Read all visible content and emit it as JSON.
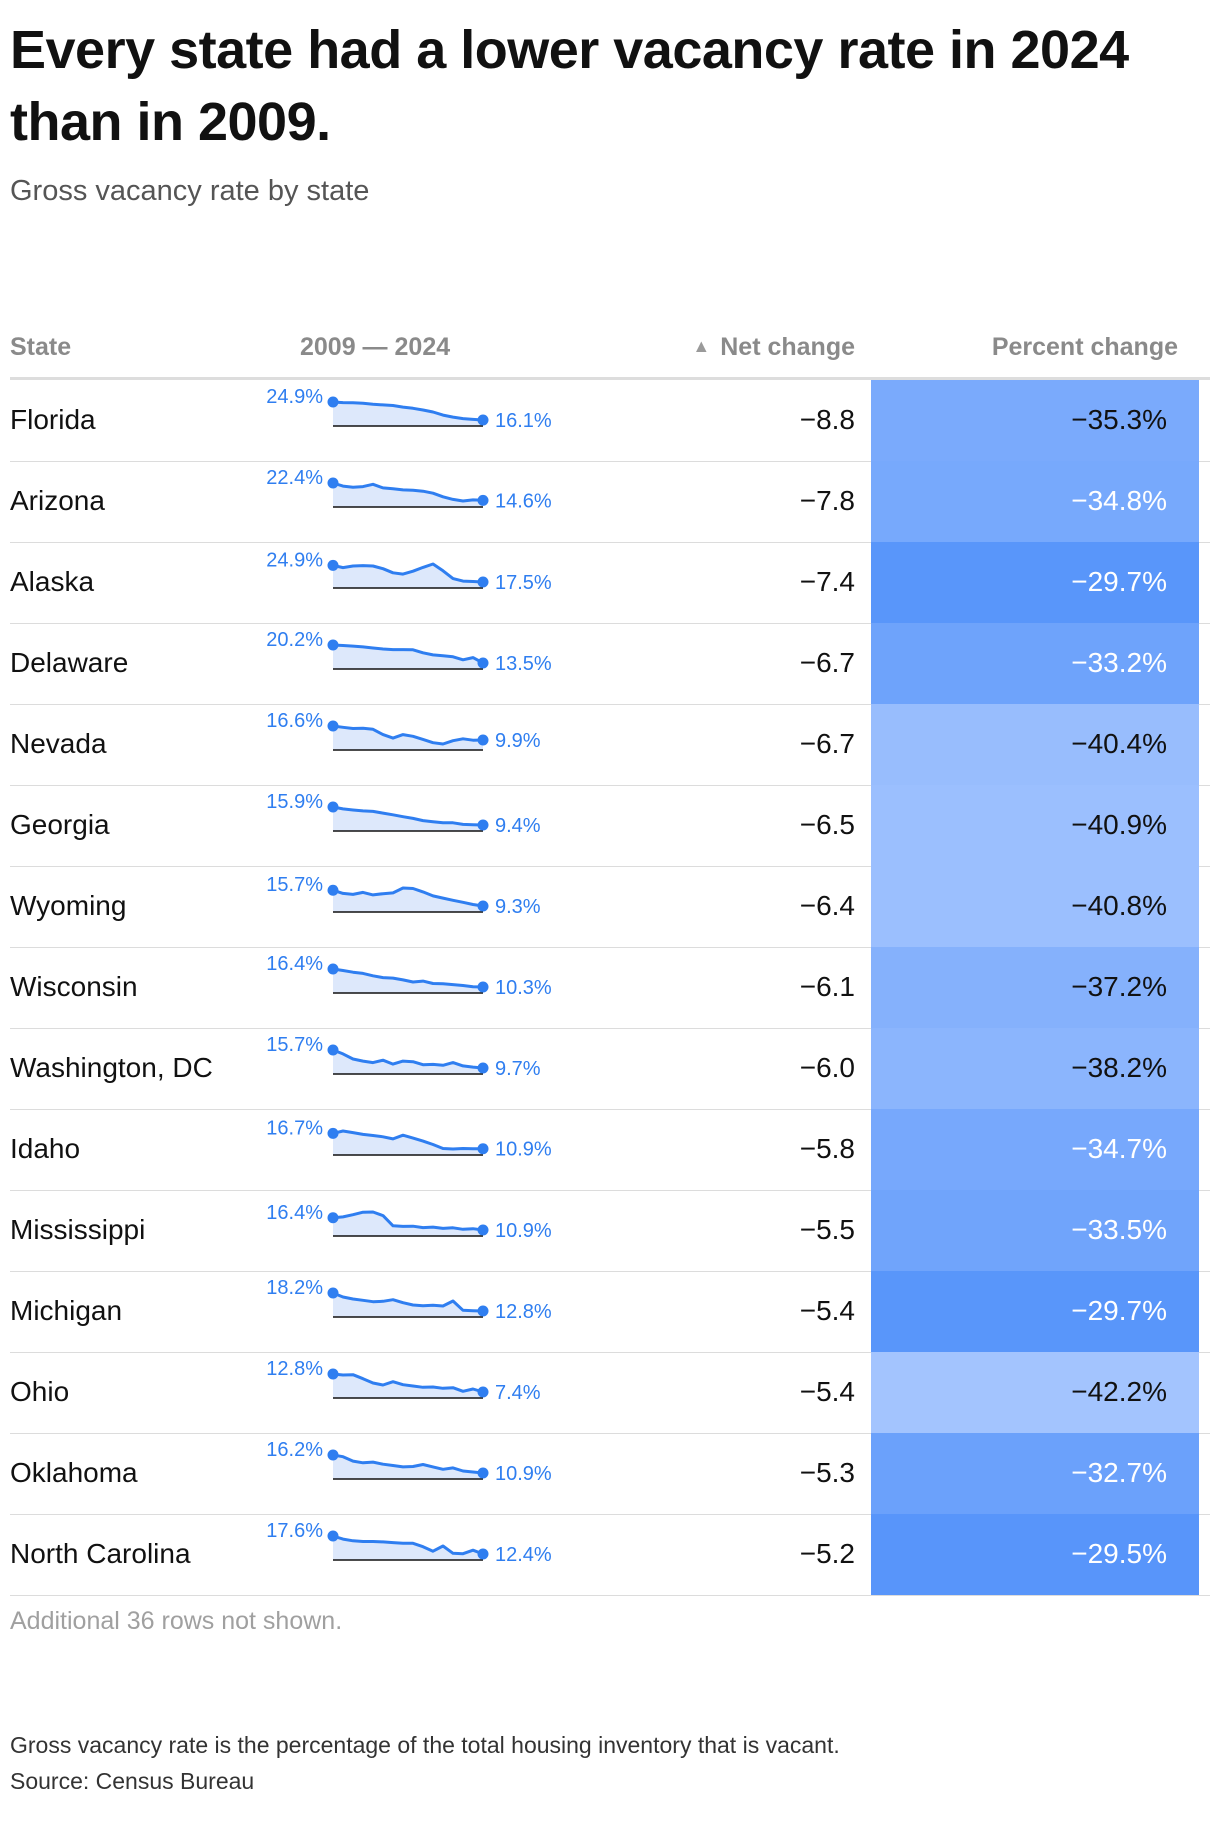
{
  "title": "Every state had a lower vacancy rate in 2024 than in 2009.",
  "subtitle": "Gross vacancy rate by state",
  "columns": {
    "state": "State",
    "range": "2009 — 2024",
    "net": "Net change",
    "percent": "Percent change"
  },
  "note": "Additional 36 rows not shown.",
  "footnote": "Gross vacancy rate is the percentage of the total housing inventory that is vacant.",
  "source": "Source: Census Bureau",
  "colors": {
    "accent": "#2f7ef0",
    "area": "#dde8fb"
  },
  "chart_data": {
    "type": "table",
    "sparkline_years": [
      2009,
      2024
    ],
    "rows": [
      {
        "state": "Florida",
        "start": "24.9%",
        "end": "16.1%",
        "net": "−8.8",
        "percent": "−35.3%",
        "spark": [
          24.9,
          24.6,
          24.5,
          24.3,
          23.8,
          23.5,
          23.2,
          22.4,
          21.8,
          21.0,
          20.0,
          18.5,
          17.5,
          16.8,
          16.4,
          16.1
        ]
      },
      {
        "state": "Arizona",
        "start": "22.4%",
        "end": "14.6%",
        "net": "−7.8",
        "percent": "−34.8%",
        "spark": [
          22.4,
          21.0,
          20.5,
          20.8,
          21.8,
          20.2,
          19.8,
          19.3,
          19.1,
          18.7,
          17.8,
          16.2,
          15.0,
          14.3,
          14.8,
          14.6
        ]
      },
      {
        "state": "Alaska",
        "start": "24.9%",
        "end": "17.5%",
        "net": "−7.4",
        "percent": "−29.7%",
        "spark": [
          24.9,
          23.9,
          24.6,
          24.8,
          24.6,
          23.4,
          21.6,
          21.0,
          22.3,
          24.0,
          25.5,
          22.5,
          19.0,
          17.9,
          17.7,
          17.5
        ]
      },
      {
        "state": "Delaware",
        "start": "20.2%",
        "end": "13.5%",
        "net": "−6.7",
        "percent": "−33.2%",
        "spark": [
          20.2,
          20.0,
          19.8,
          19.5,
          19.1,
          18.7,
          18.5,
          18.5,
          18.4,
          17.3,
          16.5,
          16.2,
          15.8,
          14.7,
          15.5,
          13.5
        ]
      },
      {
        "state": "Nevada",
        "start": "16.6%",
        "end": "9.9%",
        "net": "−6.7",
        "percent": "−40.4%",
        "spark": [
          16.6,
          16.0,
          15.4,
          15.5,
          15.0,
          12.5,
          10.8,
          12.5,
          11.7,
          10.2,
          8.6,
          8.0,
          9.6,
          10.5,
          9.8,
          9.9
        ]
      },
      {
        "state": "Georgia",
        "start": "15.9%",
        "end": "9.4%",
        "net": "−6.5",
        "percent": "−40.9%",
        "spark": [
          15.9,
          15.2,
          14.8,
          14.5,
          14.3,
          13.7,
          13.1,
          12.4,
          11.8,
          11.0,
          10.6,
          10.2,
          10.2,
          9.6,
          9.5,
          9.4
        ]
      },
      {
        "state": "Wyoming",
        "start": "15.7%",
        "end": "9.3%",
        "net": "−6.4",
        "percent": "−40.8%",
        "spark": [
          15.7,
          14.4,
          14.0,
          14.8,
          13.8,
          14.3,
          14.6,
          16.6,
          16.4,
          15.0,
          13.4,
          12.5,
          11.6,
          10.8,
          9.9,
          9.3
        ]
      },
      {
        "state": "Wisconsin",
        "start": "16.4%",
        "end": "10.3%",
        "net": "−6.1",
        "percent": "−37.2%",
        "spark": [
          16.4,
          15.9,
          15.3,
          14.9,
          14.1,
          13.5,
          13.3,
          12.7,
          12.0,
          12.3,
          11.5,
          11.4,
          11.1,
          10.8,
          10.4,
          10.3
        ]
      },
      {
        "state": "Washington, DC",
        "start": "15.7%",
        "end": "9.7%",
        "net": "−6.0",
        "percent": "−38.2%",
        "spark": [
          15.7,
          14.4,
          12.7,
          12.0,
          11.5,
          12.3,
          11.0,
          12.0,
          11.8,
          10.8,
          10.9,
          10.6,
          11.5,
          10.4,
          10.0,
          9.7
        ]
      },
      {
        "state": "Idaho",
        "start": "16.7%",
        "end": "10.9%",
        "net": "−5.8",
        "percent": "−34.7%",
        "spark": [
          16.7,
          17.6,
          17.0,
          16.3,
          15.9,
          15.4,
          14.6,
          16.0,
          14.9,
          13.8,
          12.5,
          11.0,
          10.8,
          11.0,
          10.9,
          10.9
        ]
      },
      {
        "state": "Mississippi",
        "start": "16.4%",
        "end": "10.9%",
        "net": "−5.5",
        "percent": "−33.5%",
        "spark": [
          16.4,
          16.8,
          17.8,
          18.9,
          19.0,
          17.4,
          12.8,
          12.5,
          12.6,
          12.0,
          12.2,
          11.6,
          11.9,
          11.2,
          11.5,
          10.9
        ]
      },
      {
        "state": "Michigan",
        "start": "18.2%",
        "end": "12.8%",
        "net": "−5.4",
        "percent": "−29.7%",
        "spark": [
          18.2,
          17.0,
          16.4,
          16.0,
          15.6,
          15.7,
          16.2,
          15.3,
          14.6,
          14.4,
          14.5,
          14.3,
          15.8,
          13.0,
          12.9,
          12.8
        ]
      },
      {
        "state": "Ohio",
        "start": "12.8%",
        "end": "7.4%",
        "net": "−5.4",
        "percent": "−42.2%",
        "spark": [
          12.8,
          12.5,
          12.6,
          11.4,
          10.1,
          9.5,
          10.5,
          9.6,
          9.2,
          8.8,
          8.9,
          8.5,
          8.7,
          7.6,
          8.3,
          7.4
        ]
      },
      {
        "state": "Oklahoma",
        "start": "16.2%",
        "end": "10.9%",
        "net": "−5.3",
        "percent": "−32.7%",
        "spark": [
          16.2,
          15.7,
          14.4,
          13.9,
          14.1,
          13.5,
          13.1,
          12.7,
          12.8,
          13.4,
          12.7,
          12.0,
          12.4,
          11.5,
          11.2,
          10.9
        ]
      },
      {
        "state": "North Carolina",
        "start": "17.6%",
        "end": "12.4%",
        "net": "−5.2",
        "percent": "−29.5%",
        "spark": [
          17.6,
          16.7,
          16.2,
          16.0,
          16.0,
          15.9,
          15.7,
          15.5,
          15.5,
          14.5,
          13.2,
          14.7,
          12.6,
          12.5,
          13.5,
          12.4
        ]
      }
    ]
  }
}
